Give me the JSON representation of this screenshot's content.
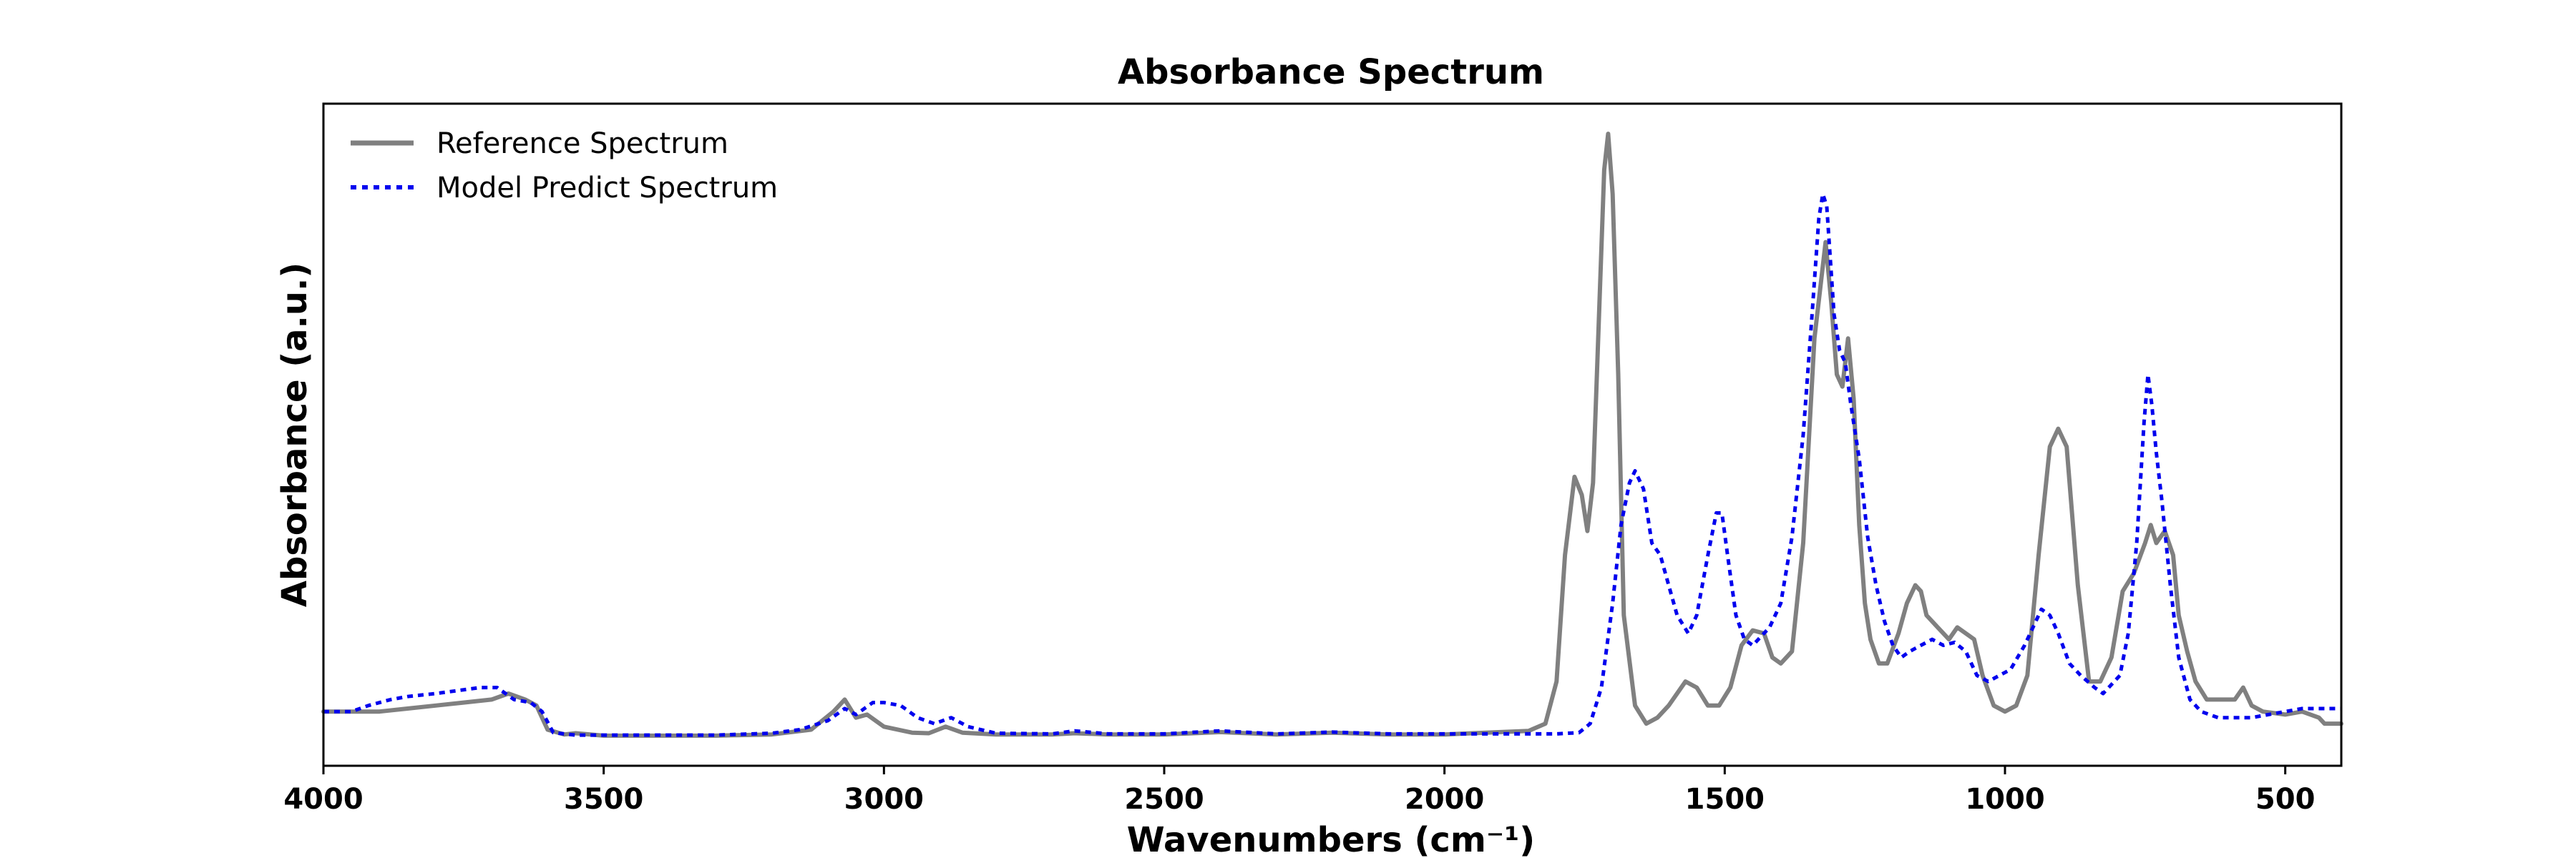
{
  "chart_data": {
    "type": "line",
    "title": "Absorbance Spectrum",
    "xlabel": "Wavenumbers (cm⁻¹)",
    "ylabel": "Absorbance (a.u.)",
    "xlim": [
      4000,
      400
    ],
    "ylim": [
      -0.05,
      1.05
    ],
    "x_inverted": true,
    "y_ticks_visible": false,
    "grid": false,
    "legend_position": "top-left",
    "x_ticks": [
      4000,
      3500,
      3000,
      2500,
      2000,
      1500,
      1000,
      500
    ],
    "series": [
      {
        "name": "Reference Spectrum",
        "color": "#808080",
        "style": "solid",
        "points": [
          [
            4000,
            0.04
          ],
          [
            3950,
            0.04
          ],
          [
            3900,
            0.04
          ],
          [
            3850,
            0.045
          ],
          [
            3800,
            0.05
          ],
          [
            3750,
            0.055
          ],
          [
            3700,
            0.06
          ],
          [
            3670,
            0.07
          ],
          [
            3640,
            0.06
          ],
          [
            3620,
            0.05
          ],
          [
            3600,
            0.01
          ],
          [
            3570,
            0.002
          ],
          [
            3550,
            0.004
          ],
          [
            3500,
            0.0
          ],
          [
            3400,
            0.0
          ],
          [
            3300,
            0.0
          ],
          [
            3200,
            0.002
          ],
          [
            3130,
            0.01
          ],
          [
            3090,
            0.04
          ],
          [
            3070,
            0.06
          ],
          [
            3050,
            0.03
          ],
          [
            3030,
            0.035
          ],
          [
            3000,
            0.015
          ],
          [
            2950,
            0.005
          ],
          [
            2920,
            0.004
          ],
          [
            2890,
            0.015
          ],
          [
            2860,
            0.005
          ],
          [
            2800,
            0.002
          ],
          [
            2700,
            0.002
          ],
          [
            2660,
            0.004
          ],
          [
            2600,
            0.002
          ],
          [
            2500,
            0.002
          ],
          [
            2400,
            0.006
          ],
          [
            2300,
            0.002
          ],
          [
            2200,
            0.005
          ],
          [
            2100,
            0.002
          ],
          [
            2000,
            0.002
          ],
          [
            1900,
            0.006
          ],
          [
            1850,
            0.008
          ],
          [
            1820,
            0.02
          ],
          [
            1800,
            0.09
          ],
          [
            1785,
            0.3
          ],
          [
            1768,
            0.43
          ],
          [
            1755,
            0.4
          ],
          [
            1745,
            0.34
          ],
          [
            1735,
            0.42
          ],
          [
            1725,
            0.68
          ],
          [
            1715,
            0.94
          ],
          [
            1708,
            1.0
          ],
          [
            1700,
            0.9
          ],
          [
            1690,
            0.6
          ],
          [
            1680,
            0.2
          ],
          [
            1660,
            0.05
          ],
          [
            1640,
            0.02
          ],
          [
            1620,
            0.03
          ],
          [
            1600,
            0.05
          ],
          [
            1570,
            0.09
          ],
          [
            1550,
            0.08
          ],
          [
            1530,
            0.05
          ],
          [
            1510,
            0.05
          ],
          [
            1490,
            0.08
          ],
          [
            1470,
            0.15
          ],
          [
            1450,
            0.175
          ],
          [
            1430,
            0.17
          ],
          [
            1415,
            0.13
          ],
          [
            1400,
            0.12
          ],
          [
            1380,
            0.14
          ],
          [
            1360,
            0.32
          ],
          [
            1340,
            0.66
          ],
          [
            1320,
            0.82
          ],
          [
            1310,
            0.72
          ],
          [
            1300,
            0.6
          ],
          [
            1290,
            0.58
          ],
          [
            1280,
            0.66
          ],
          [
            1270,
            0.56
          ],
          [
            1260,
            0.35
          ],
          [
            1250,
            0.22
          ],
          [
            1240,
            0.16
          ],
          [
            1225,
            0.12
          ],
          [
            1210,
            0.12
          ],
          [
            1190,
            0.17
          ],
          [
            1175,
            0.22
          ],
          [
            1160,
            0.25
          ],
          [
            1150,
            0.24
          ],
          [
            1140,
            0.2
          ],
          [
            1120,
            0.18
          ],
          [
            1100,
            0.16
          ],
          [
            1085,
            0.18
          ],
          [
            1070,
            0.17
          ],
          [
            1055,
            0.16
          ],
          [
            1040,
            0.1
          ],
          [
            1020,
            0.05
          ],
          [
            1000,
            0.04
          ],
          [
            980,
            0.05
          ],
          [
            960,
            0.1
          ],
          [
            940,
            0.3
          ],
          [
            920,
            0.48
          ],
          [
            905,
            0.51
          ],
          [
            890,
            0.48
          ],
          [
            870,
            0.25
          ],
          [
            850,
            0.09
          ],
          [
            830,
            0.09
          ],
          [
            810,
            0.13
          ],
          [
            790,
            0.24
          ],
          [
            770,
            0.27
          ],
          [
            750,
            0.32
          ],
          [
            740,
            0.35
          ],
          [
            730,
            0.32
          ],
          [
            715,
            0.34
          ],
          [
            700,
            0.3
          ],
          [
            690,
            0.2
          ],
          [
            675,
            0.14
          ],
          [
            660,
            0.09
          ],
          [
            640,
            0.06
          ],
          [
            620,
            0.06
          ],
          [
            600,
            0.06
          ],
          [
            590,
            0.06
          ],
          [
            575,
            0.08
          ],
          [
            560,
            0.05
          ],
          [
            540,
            0.04
          ],
          [
            500,
            0.035
          ],
          [
            470,
            0.04
          ],
          [
            440,
            0.03
          ],
          [
            430,
            0.02
          ],
          [
            400,
            0.02
          ]
        ]
      },
      {
        "name": "Model Predict Spectrum",
        "color": "#0000ee",
        "style": "dotted",
        "points": [
          [
            4000,
            0.04
          ],
          [
            3950,
            0.04
          ],
          [
            3920,
            0.05
          ],
          [
            3880,
            0.06
          ],
          [
            3850,
            0.065
          ],
          [
            3800,
            0.07
          ],
          [
            3760,
            0.075
          ],
          [
            3720,
            0.08
          ],
          [
            3690,
            0.08
          ],
          [
            3660,
            0.06
          ],
          [
            3630,
            0.055
          ],
          [
            3610,
            0.04
          ],
          [
            3590,
            0.005
          ],
          [
            3550,
            0.001
          ],
          [
            3500,
            0.001
          ],
          [
            3400,
            0.001
          ],
          [
            3300,
            0.001
          ],
          [
            3200,
            0.004
          ],
          [
            3150,
            0.01
          ],
          [
            3100,
            0.025
          ],
          [
            3070,
            0.045
          ],
          [
            3050,
            0.035
          ],
          [
            3020,
            0.055
          ],
          [
            3000,
            0.055
          ],
          [
            2970,
            0.05
          ],
          [
            2940,
            0.03
          ],
          [
            2910,
            0.02
          ],
          [
            2880,
            0.03
          ],
          [
            2850,
            0.015
          ],
          [
            2800,
            0.004
          ],
          [
            2700,
            0.003
          ],
          [
            2660,
            0.008
          ],
          [
            2600,
            0.003
          ],
          [
            2500,
            0.003
          ],
          [
            2400,
            0.008
          ],
          [
            2300,
            0.003
          ],
          [
            2200,
            0.006
          ],
          [
            2100,
            0.003
          ],
          [
            2000,
            0.003
          ],
          [
            1900,
            0.003
          ],
          [
            1850,
            0.003
          ],
          [
            1800,
            0.003
          ],
          [
            1760,
            0.005
          ],
          [
            1740,
            0.02
          ],
          [
            1720,
            0.08
          ],
          [
            1700,
            0.22
          ],
          [
            1685,
            0.35
          ],
          [
            1670,
            0.42
          ],
          [
            1660,
            0.44
          ],
          [
            1645,
            0.41
          ],
          [
            1630,
            0.32
          ],
          [
            1615,
            0.3
          ],
          [
            1600,
            0.25
          ],
          [
            1585,
            0.2
          ],
          [
            1565,
            0.17
          ],
          [
            1550,
            0.2
          ],
          [
            1530,
            0.3
          ],
          [
            1515,
            0.37
          ],
          [
            1505,
            0.37
          ],
          [
            1495,
            0.3
          ],
          [
            1480,
            0.2
          ],
          [
            1465,
            0.16
          ],
          [
            1450,
            0.15
          ],
          [
            1420,
            0.18
          ],
          [
            1400,
            0.22
          ],
          [
            1380,
            0.33
          ],
          [
            1360,
            0.5
          ],
          [
            1345,
            0.69
          ],
          [
            1332,
            0.86
          ],
          [
            1325,
            0.9
          ],
          [
            1318,
            0.88
          ],
          [
            1305,
            0.7
          ],
          [
            1295,
            0.64
          ],
          [
            1285,
            0.62
          ],
          [
            1275,
            0.55
          ],
          [
            1260,
            0.46
          ],
          [
            1245,
            0.33
          ],
          [
            1230,
            0.25
          ],
          [
            1215,
            0.19
          ],
          [
            1200,
            0.15
          ],
          [
            1185,
            0.13
          ],
          [
            1170,
            0.14
          ],
          [
            1150,
            0.15
          ],
          [
            1130,
            0.16
          ],
          [
            1110,
            0.15
          ],
          [
            1090,
            0.155
          ],
          [
            1070,
            0.14
          ],
          [
            1050,
            0.1
          ],
          [
            1030,
            0.09
          ],
          [
            1010,
            0.1
          ],
          [
            990,
            0.11
          ],
          [
            965,
            0.15
          ],
          [
            945,
            0.19
          ],
          [
            935,
            0.21
          ],
          [
            920,
            0.2
          ],
          [
            905,
            0.17
          ],
          [
            885,
            0.12
          ],
          [
            865,
            0.1
          ],
          [
            840,
            0.08
          ],
          [
            825,
            0.07
          ],
          [
            810,
            0.085
          ],
          [
            795,
            0.1
          ],
          [
            780,
            0.17
          ],
          [
            765,
            0.32
          ],
          [
            752,
            0.52
          ],
          [
            745,
            0.6
          ],
          [
            738,
            0.55
          ],
          [
            730,
            0.47
          ],
          [
            720,
            0.39
          ],
          [
            705,
            0.25
          ],
          [
            690,
            0.13
          ],
          [
            670,
            0.06
          ],
          [
            650,
            0.04
          ],
          [
            620,
            0.03
          ],
          [
            590,
            0.03
          ],
          [
            560,
            0.03
          ],
          [
            530,
            0.035
          ],
          [
            500,
            0.04
          ],
          [
            470,
            0.045
          ],
          [
            440,
            0.045
          ],
          [
            400,
            0.045
          ]
        ]
      }
    ]
  }
}
